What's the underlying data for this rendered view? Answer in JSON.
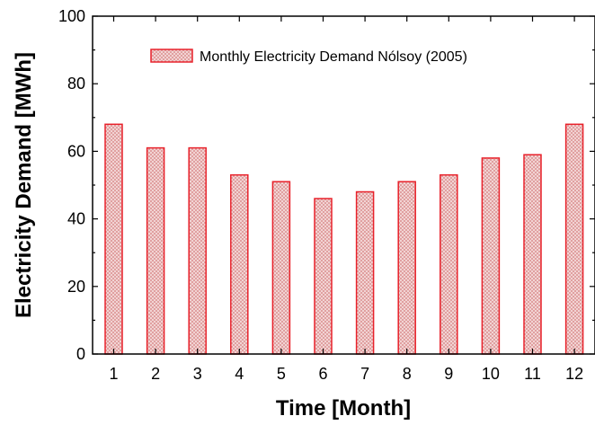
{
  "chart_data": {
    "type": "bar",
    "categories": [
      "1",
      "2",
      "3",
      "4",
      "5",
      "6",
      "7",
      "8",
      "9",
      "10",
      "11",
      "12"
    ],
    "series": [
      {
        "name": "Monthly Electricity Demand Nólsoy (2005)",
        "values": [
          68,
          61,
          61,
          53,
          51,
          46,
          48,
          51,
          53,
          58,
          59,
          68
        ]
      }
    ],
    "xlabel": "Time  [Month]",
    "ylabel": "Electricity Demand [MWh]",
    "ylim": [
      0,
      100
    ],
    "yticks": [
      "0",
      "20",
      "40",
      "60",
      "80",
      "100"
    ],
    "grid": false,
    "legend_position": "top-center",
    "bar_edge_color": "#e8212a",
    "bar_fill_color": "#f0c8c8",
    "bar_pattern": "crosshatch"
  }
}
